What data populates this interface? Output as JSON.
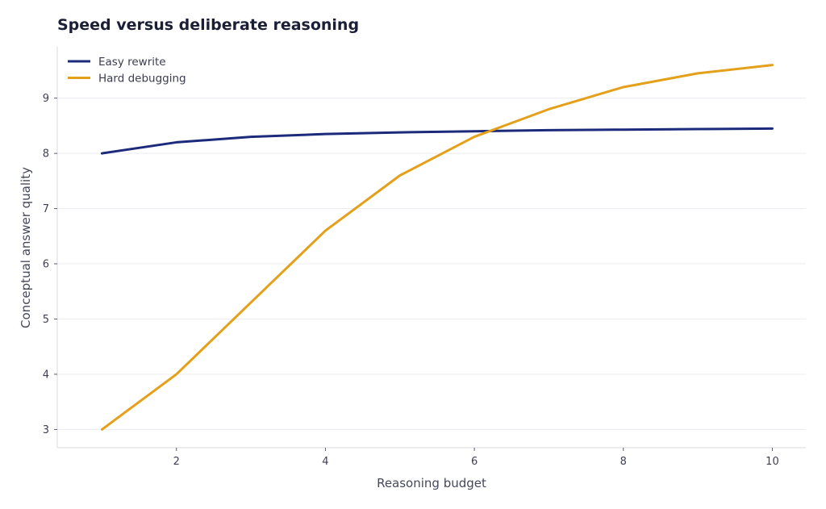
{
  "chart_data": {
    "type": "line",
    "title": "Speed versus deliberate reasoning",
    "xlabel": "Reasoning budget",
    "ylabel": "Conceptual answer quality",
    "x": [
      1,
      2,
      3,
      4,
      5,
      6,
      7,
      8,
      9,
      10
    ],
    "xlim": [
      0.4,
      10.45
    ],
    "ylim": [
      2.67,
      9.93
    ],
    "xticks": [
      2,
      4,
      6,
      8,
      10
    ],
    "yticks": [
      3,
      4,
      5,
      6,
      7,
      8,
      9
    ],
    "grid": "horizontal",
    "legend": "top-left",
    "series": [
      {
        "name": "Easy rewrite",
        "color": "#1b2a7a",
        "values": [
          8.0,
          8.2,
          8.3,
          8.35,
          8.38,
          8.4,
          8.42,
          8.43,
          8.44,
          8.45
        ]
      },
      {
        "name": "Hard debugging",
        "color": "#e5a01b",
        "values": [
          3.0,
          4.0,
          5.3,
          6.6,
          7.6,
          8.3,
          8.8,
          9.2,
          9.45,
          9.6
        ]
      }
    ]
  }
}
